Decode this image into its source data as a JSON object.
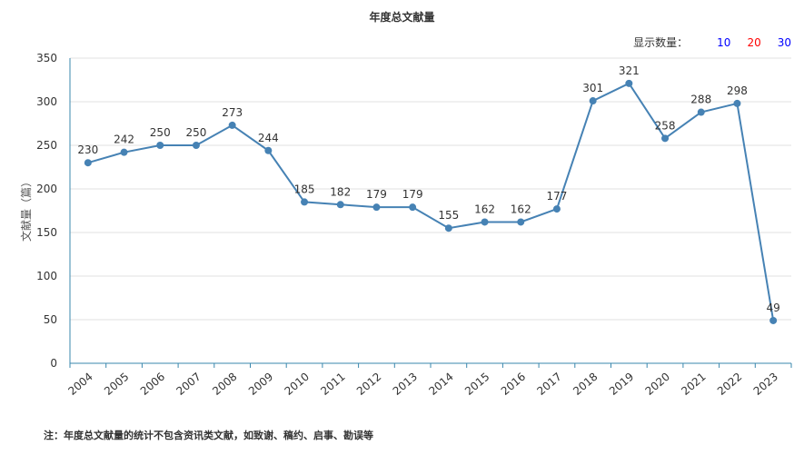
{
  "chart_data": {
    "type": "line",
    "title": "年度总文献量",
    "ylabel": "文献量（篇）",
    "xlabel": "",
    "categories": [
      "2004",
      "2005",
      "2006",
      "2007",
      "2008",
      "2009",
      "2010",
      "2011",
      "2012",
      "2013",
      "2014",
      "2015",
      "2016",
      "2017",
      "2018",
      "2019",
      "2020",
      "2021",
      "2022",
      "2023"
    ],
    "values": [
      230,
      242,
      250,
      250,
      273,
      244,
      185,
      182,
      179,
      179,
      155,
      162,
      162,
      177,
      301,
      321,
      258,
      288,
      298,
      49
    ],
    "ylim": [
      0,
      350
    ],
    "yticks": [
      0,
      50,
      100,
      150,
      200,
      250,
      300,
      350
    ],
    "grid": true,
    "line_color": "#4682b4"
  },
  "display_count": {
    "label": "显示数量：",
    "options": [
      "10",
      "20",
      "30"
    ]
  },
  "footnote": "注：年度总文献量的统计不包含资讯类文献，如致谢、稿约、启事、勘误等"
}
